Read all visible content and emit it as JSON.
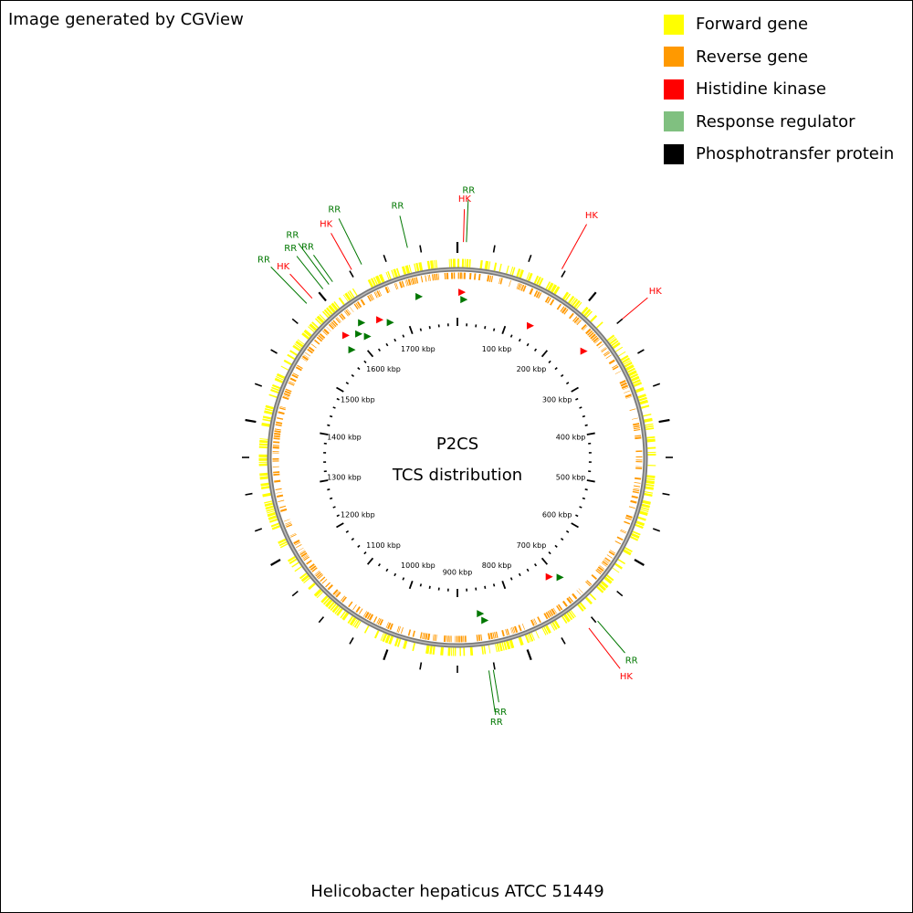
{
  "header": {
    "credit": "Image generated by CGView"
  },
  "legend": [
    {
      "label": "Forward gene",
      "color": "#ffff00"
    },
    {
      "label": "Reverse gene",
      "color": "#ff9900"
    },
    {
      "label": "Histidine kinase",
      "color": "#ff0000"
    },
    {
      "label": "Response regulator",
      "color": "#80c080"
    },
    {
      "label": "Phosphotransfer protein",
      "color": "#000000"
    }
  ],
  "map": {
    "center_title": "P2CS",
    "center_subtitle": "TCS distribution",
    "genome_length_kbp": 1800,
    "kbp_labels": [
      "100 kbp",
      "200 kbp",
      "300 kbp",
      "400 kbp",
      "500 kbp",
      "600 kbp",
      "700 kbp",
      "800 kbp",
      "900 kbp",
      "1000 kbp",
      "1100 kbp",
      "1200 kbp",
      "1300 kbp",
      "1400 kbp",
      "1500 kbp",
      "1600 kbp",
      "1700 kbp"
    ],
    "features": [
      {
        "type": "RR",
        "kbp": 12,
        "color": "#007700"
      },
      {
        "type": "HK",
        "kbp": 8,
        "color": "#ff0000"
      },
      {
        "type": "HK",
        "kbp": 145,
        "color": "#ff0000"
      },
      {
        "type": "HK",
        "kbp": 250,
        "color": "#ff0000"
      },
      {
        "type": "RR",
        "kbp": 697,
        "color": "#007700"
      },
      {
        "type": "HK",
        "kbp": 712,
        "color": "#ff0000"
      },
      {
        "type": "RR",
        "kbp": 852,
        "color": "#007700"
      },
      {
        "type": "RR",
        "kbp": 858,
        "color": "#007700"
      },
      {
        "type": "RR",
        "kbp": 1578,
        "color": "#007700"
      },
      {
        "type": "HK",
        "kbp": 1588,
        "color": "#ff0000"
      },
      {
        "type": "RR",
        "kbp": 1607,
        "color": "#007700"
      },
      {
        "type": "RR",
        "kbp": 1617,
        "color": "#007700"
      },
      {
        "type": "RR",
        "kbp": 1623,
        "color": "#007700"
      },
      {
        "type": "HK",
        "kbp": 1653,
        "color": "#ff0000"
      },
      {
        "type": "RR",
        "kbp": 1668,
        "color": "#007700"
      },
      {
        "type": "RR",
        "kbp": 1733,
        "color": "#007700"
      }
    ]
  },
  "footer": {
    "caption": "Helicobacter hepaticus ATCC 51449"
  }
}
